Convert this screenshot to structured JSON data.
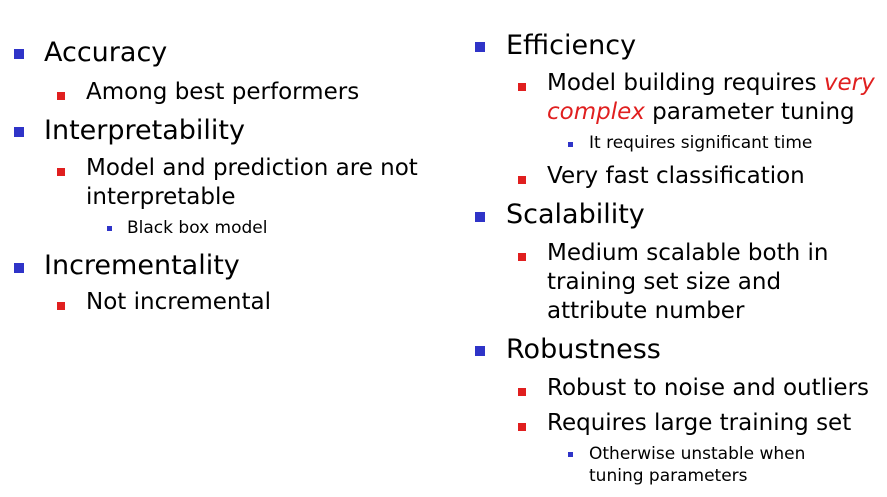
{
  "colors": {
    "level1_bullet": "#2f34c8",
    "level2_bullet": "#e01f1f",
    "level3_bullet": "#2f34c8",
    "emphasis": "#e01f1f"
  },
  "left": {
    "accuracy": {
      "heading": "Accuracy",
      "sub1": "Among best performers"
    },
    "interpretability": {
      "heading": "Interpretability",
      "sub1_line1": "Model and prediction are not",
      "sub1_line2": "interpretable",
      "subsub1": "Black box model"
    },
    "incrementality": {
      "heading": "Incrementality",
      "sub1": "Not incremental"
    }
  },
  "right": {
    "efficiency": {
      "heading": "Efficiency",
      "sub1_text1": "Model building requires ",
      "sub1_emph1": "very",
      "sub1_emph2": "complex",
      "sub1_text2": " parameter tuning",
      "subsub1": "It requires significant time",
      "sub2": "Very fast classification"
    },
    "scalability": {
      "heading": "Scalability",
      "sub1_line1": "Medium scalable both in",
      "sub1_line2": "training set size and",
      "sub1_line3": "attribute number"
    },
    "robustness": {
      "heading": "Robustness",
      "sub1": "Robust to noise and outliers",
      "sub2": "Requires large training set",
      "subsub1_line1": "Otherwise unstable when",
      "subsub1_line2": "tuning parameters"
    }
  }
}
